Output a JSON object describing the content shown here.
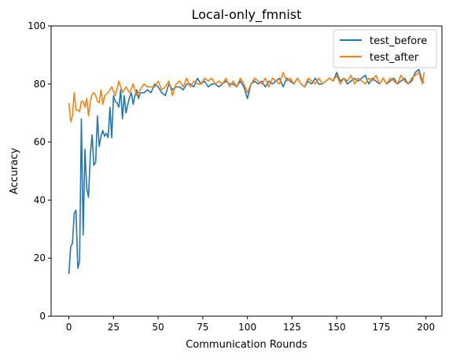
{
  "chart_data": {
    "type": "line",
    "title": "Local-only_fmnist",
    "xlabel": "Communication Rounds",
    "ylabel": "Accuracy",
    "xlim": [
      -9.95,
      208.95
    ],
    "ylim": [
      0,
      100
    ],
    "xticks": [
      0,
      25,
      50,
      75,
      100,
      125,
      150,
      175,
      200
    ],
    "yticks": [
      0,
      20,
      40,
      60,
      80,
      100
    ],
    "grid": false,
    "legend_position": "top-right",
    "series": [
      {
        "name": "test_before",
        "color": "#1f77b4",
        "x": [
          0,
          1,
          2,
          3,
          4,
          5,
          6,
          7,
          8,
          9,
          10,
          11,
          12,
          13,
          14,
          15,
          16,
          17,
          18,
          19,
          20,
          21,
          22,
          23,
          24,
          25,
          26,
          27,
          28,
          29,
          30,
          31,
          32,
          33,
          34,
          35,
          36,
          37,
          38,
          39,
          40,
          42,
          44,
          46,
          48,
          50,
          52,
          54,
          56,
          58,
          60,
          62,
          64,
          66,
          68,
          70,
          72,
          74,
          76,
          78,
          80,
          82,
          84,
          86,
          88,
          90,
          92,
          94,
          96,
          98,
          100,
          102,
          104,
          106,
          108,
          110,
          112,
          114,
          116,
          118,
          120,
          122,
          124,
          126,
          128,
          130,
          132,
          134,
          136,
          138,
          140,
          142,
          144,
          146,
          148,
          150,
          152,
          154,
          156,
          158,
          160,
          162,
          164,
          166,
          168,
          170,
          172,
          174,
          176,
          178,
          180,
          182,
          184,
          186,
          188,
          190,
          192,
          194,
          196,
          198,
          199
        ],
        "values": [
          14.5,
          24,
          25,
          35.5,
          36.5,
          16.5,
          19,
          68,
          28,
          57.5,
          44,
          41,
          55.5,
          62.5,
          52,
          53,
          69,
          58.5,
          62,
          64,
          62,
          63,
          61.5,
          72,
          61.5,
          76,
          74,
          73.5,
          72,
          78,
          68,
          76,
          70,
          73,
          75.5,
          77,
          73,
          76,
          78,
          75,
          77,
          77,
          78,
          77,
          80,
          79,
          77,
          76,
          80,
          78,
          79,
          79,
          78,
          80,
          80,
          79,
          82,
          80,
          81,
          79,
          80,
          80,
          79,
          80,
          81,
          80,
          80,
          79,
          81,
          79,
          75,
          80,
          81,
          80,
          81,
          79,
          81,
          80,
          81,
          82,
          79,
          82,
          81,
          80,
          82,
          80,
          79,
          81,
          80,
          82,
          80,
          80,
          81,
          82,
          81,
          84,
          81,
          82,
          80,
          81,
          82,
          81,
          82,
          83,
          80,
          82,
          81,
          80,
          82,
          80,
          81,
          82,
          80,
          81,
          82,
          80,
          81,
          84,
          85,
          81,
          80.5
        ]
      },
      {
        "name": "test_after",
        "color": "#ff7f0e",
        "x": [
          0,
          1,
          2,
          3,
          4,
          5,
          6,
          7,
          8,
          9,
          10,
          11,
          12,
          13,
          14,
          15,
          16,
          17,
          18,
          19,
          20,
          22,
          24,
          26,
          28,
          30,
          32,
          34,
          36,
          38,
          40,
          42,
          44,
          46,
          48,
          50,
          52,
          54,
          56,
          58,
          60,
          62,
          64,
          66,
          68,
          70,
          72,
          74,
          76,
          78,
          80,
          82,
          84,
          86,
          88,
          90,
          92,
          94,
          96,
          98,
          100,
          102,
          104,
          106,
          108,
          110,
          112,
          114,
          116,
          118,
          120,
          122,
          124,
          126,
          128,
          130,
          132,
          134,
          136,
          138,
          140,
          142,
          144,
          146,
          148,
          150,
          152,
          154,
          156,
          158,
          160,
          162,
          164,
          166,
          168,
          170,
          172,
          174,
          176,
          178,
          180,
          182,
          184,
          186,
          188,
          190,
          192,
          194,
          196,
          198,
          199
        ],
        "values": [
          73.5,
          67,
          69,
          77,
          71,
          71,
          70.5,
          74,
          74,
          72,
          75,
          69,
          74,
          76.5,
          77,
          76,
          74,
          73.5,
          78,
          73,
          76,
          77,
          79,
          76,
          81,
          77,
          79,
          77,
          80,
          76,
          78,
          80,
          79,
          79,
          79,
          81,
          78,
          79,
          81,
          76,
          80,
          81,
          79,
          82,
          79,
          81,
          80,
          80,
          82,
          81,
          82,
          80,
          81,
          80,
          82,
          79,
          81,
          79,
          82,
          80,
          77,
          80,
          82,
          81,
          80,
          82,
          79,
          82,
          81,
          80,
          84,
          81,
          82,
          80,
          82,
          80,
          79,
          82,
          81,
          80,
          82,
          80,
          81,
          82,
          81,
          83,
          80,
          82,
          81,
          83,
          80,
          82,
          81,
          80,
          82,
          81,
          83,
          80,
          82,
          80,
          82,
          81,
          80,
          83,
          81,
          80,
          82,
          83,
          84,
          80,
          84
        ]
      }
    ]
  }
}
